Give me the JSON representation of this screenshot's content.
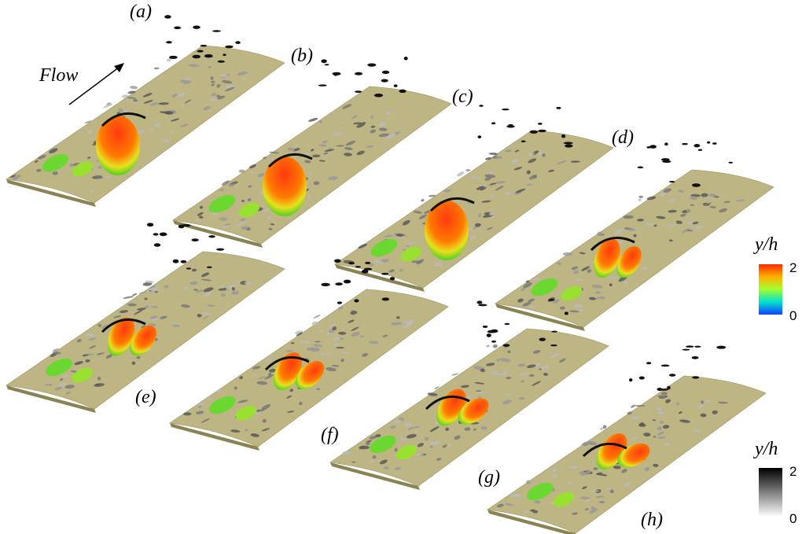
{
  "flow_label": "Flow",
  "panels": [
    {
      "label": "(a)"
    },
    {
      "label": "(b)"
    },
    {
      "label": "(c)"
    },
    {
      "label": "(d)"
    },
    {
      "label": "(e)"
    },
    {
      "label": "(f)"
    },
    {
      "label": "(g)"
    },
    {
      "label": "(h)"
    }
  ],
  "colorbars": [
    {
      "title": "y/h",
      "top_label": "2",
      "bottom_label": "0"
    },
    {
      "title": "y/h",
      "top_label": "2",
      "bottom_label": "0"
    }
  ]
}
